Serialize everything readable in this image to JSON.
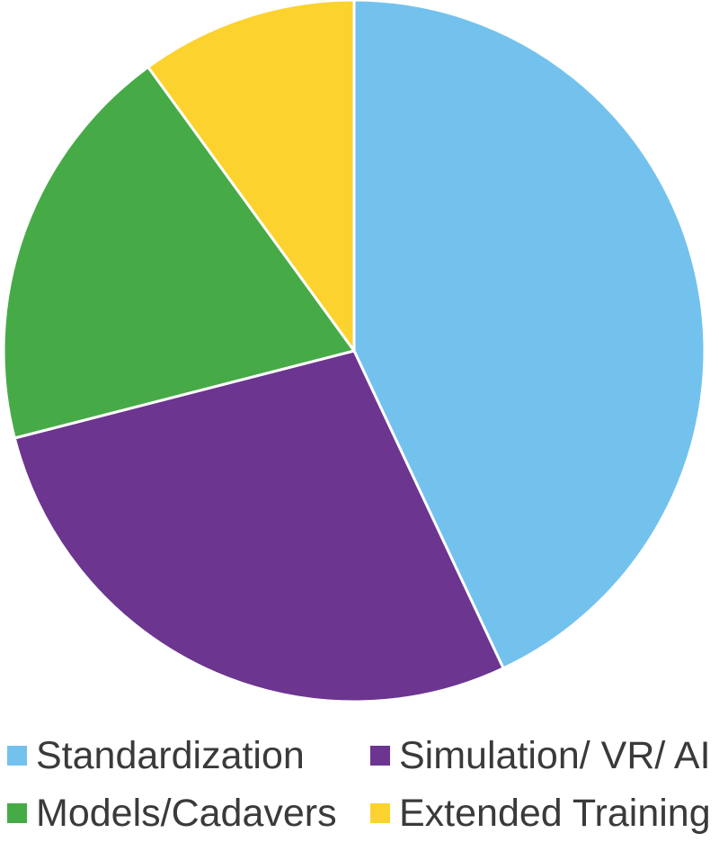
{
  "chart_data": {
    "type": "pie",
    "title": "",
    "categories": [
      "Standardization",
      "Simulation/ VR/ AI",
      "Models/Cadavers",
      "Extended Training"
    ],
    "values": [
      43,
      28,
      19,
      10
    ],
    "colors": [
      "#73C2EE",
      "#6C3590",
      "#46AB47",
      "#FCD22E"
    ],
    "start_angle_deg": 0,
    "direction": "clockwise",
    "legend_position": "bottom"
  },
  "legend": {
    "items": [
      {
        "label": "Standardization",
        "color": "#73C2EE"
      },
      {
        "label": "Simulation/ VR/ AI",
        "color": "#6C3590"
      },
      {
        "label": "Models/Cadavers",
        "color": "#46AB47"
      },
      {
        "label": "Extended Training",
        "color": "#FCD22E"
      }
    ]
  }
}
